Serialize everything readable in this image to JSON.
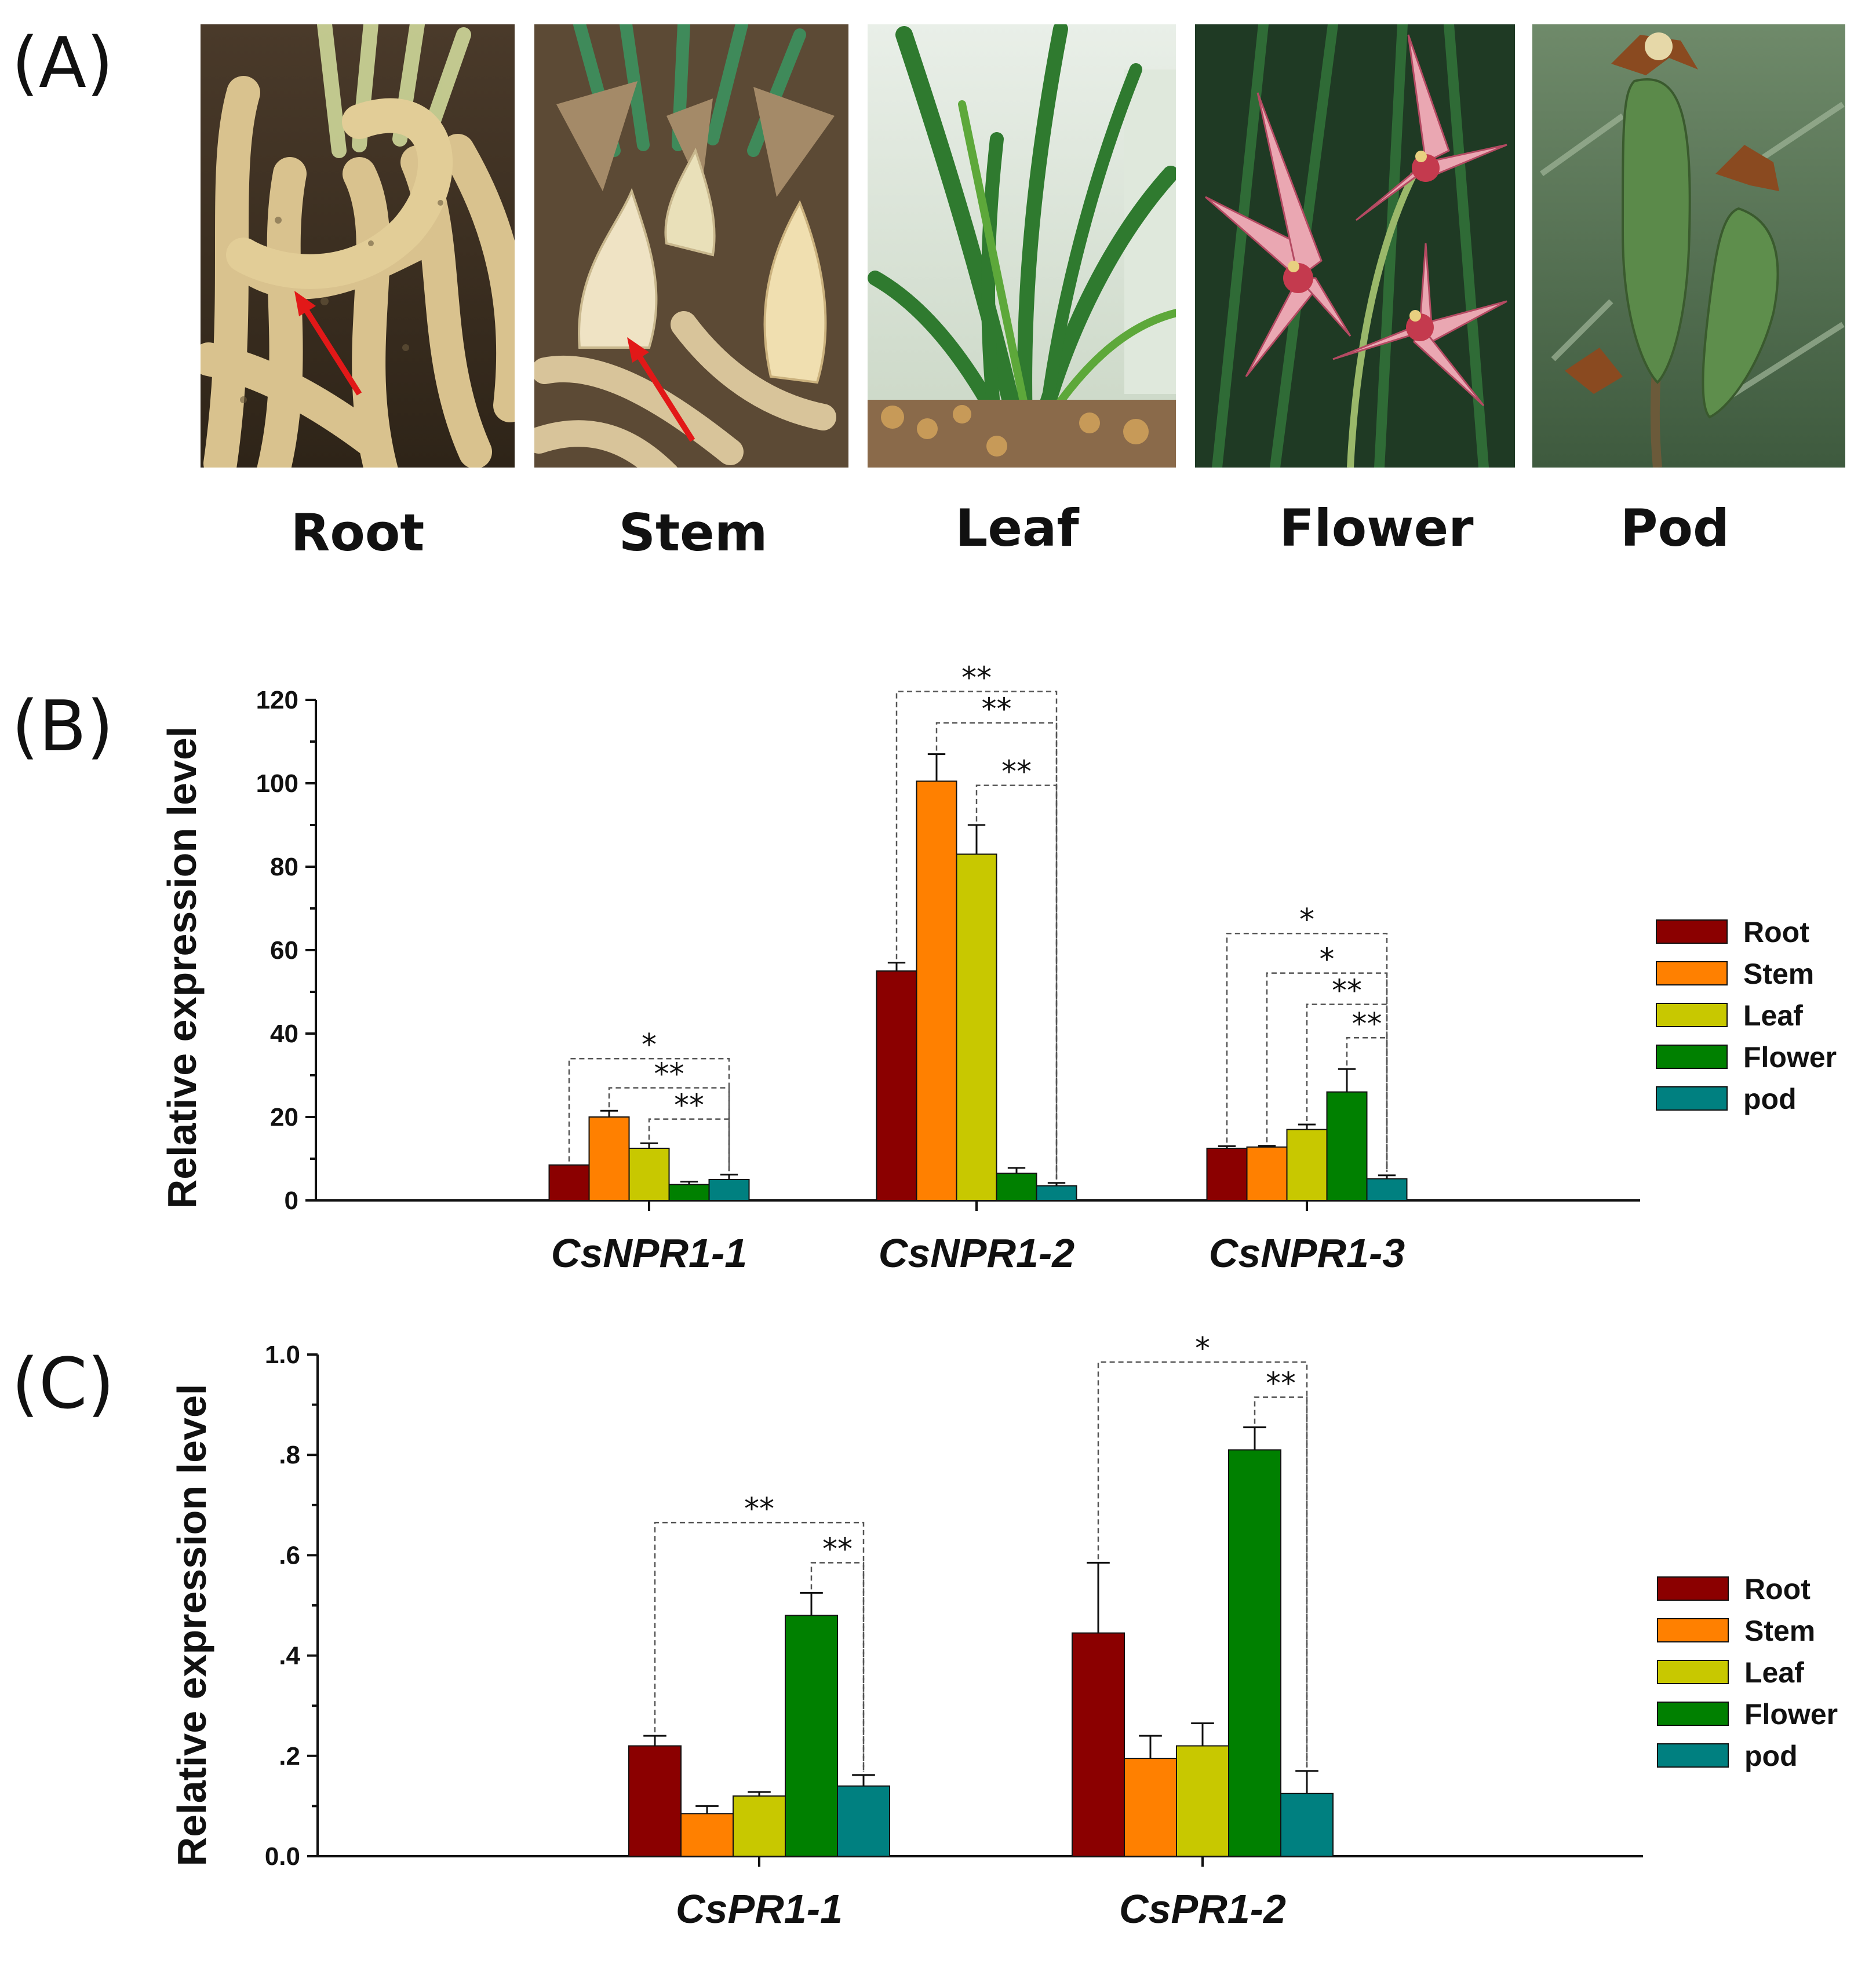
{
  "panel_labels": {
    "a": "(A)",
    "b": "(B)",
    "c": "(C)"
  },
  "photos": [
    {
      "label": "Root"
    },
    {
      "label": "Stem"
    },
    {
      "label": "Leaf"
    },
    {
      "label": "Flower"
    },
    {
      "label": "Pod"
    }
  ],
  "colors": {
    "Root": "#8b0000",
    "Stem": "#ff8000",
    "Leaf": "#c8c800",
    "Flower": "#008000",
    "pod": "#008080"
  },
  "chart_data": [
    {
      "type": "bar",
      "panel": "B",
      "ylabel": "Relative expression level",
      "xlabel": "",
      "ylim": [
        0,
        120
      ],
      "yticks": [
        0,
        20,
        40,
        60,
        80,
        100,
        120
      ],
      "ytick_labels": [
        "0",
        "20",
        "40",
        "60",
        "80",
        "100",
        "120"
      ],
      "categories": [
        "CsNPR1-1",
        "CsNPR1-2",
        "CsNPR1-3"
      ],
      "series": [
        {
          "name": "Root",
          "values": [
            8.5,
            55,
            12.5
          ],
          "errors": [
            0,
            2,
            0.5
          ]
        },
        {
          "name": "Stem",
          "values": [
            20,
            100.5,
            12.8
          ],
          "errors": [
            1.5,
            6.5,
            0.3
          ]
        },
        {
          "name": "Leaf",
          "values": [
            12.5,
            83,
            17
          ],
          "errors": [
            1.2,
            7,
            1.2
          ]
        },
        {
          "name": "Flower",
          "values": [
            3.8,
            6.5,
            26
          ],
          "errors": [
            0.7,
            1.3,
            5.5
          ]
        },
        {
          "name": "pod",
          "values": [
            5,
            3.5,
            5.2
          ],
          "errors": [
            1.2,
            0.7,
            0.8
          ]
        }
      ],
      "legend": [
        "Root",
        "Stem",
        "Leaf",
        "Flower",
        "pod"
      ],
      "significance": [
        {
          "category": 0,
          "from": 0,
          "to": 4,
          "level": 34,
          "label": "*"
        },
        {
          "category": 0,
          "from": 1,
          "to": 4,
          "level": 27,
          "label": "**"
        },
        {
          "category": 0,
          "from": 2,
          "to": 4,
          "level": 19.5,
          "label": "**"
        },
        {
          "category": 1,
          "from": 0,
          "to": 4,
          "level": 122,
          "label": "**"
        },
        {
          "category": 1,
          "from": 1,
          "to": 4,
          "level": 114.5,
          "label": "**"
        },
        {
          "category": 1,
          "from": 2,
          "to": 4,
          "level": 99.5,
          "label": "**"
        },
        {
          "category": 2,
          "from": 0,
          "to": 4,
          "level": 64,
          "label": "*"
        },
        {
          "category": 2,
          "from": 1,
          "to": 4,
          "level": 54.5,
          "label": "*"
        },
        {
          "category": 2,
          "from": 2,
          "to": 4,
          "level": 47,
          "label": "**"
        },
        {
          "category": 2,
          "from": 3,
          "to": 4,
          "level": 39,
          "label": "**"
        }
      ]
    },
    {
      "type": "bar",
      "panel": "C",
      "ylabel": "Relative expression level",
      "xlabel": "",
      "ylim": [
        0,
        1.0
      ],
      "yticks": [
        0,
        0.2,
        0.4,
        0.6,
        0.8,
        1.0
      ],
      "ytick_labels": [
        "0.0",
        ".2",
        ".4",
        ".6",
        ".8",
        "1.0"
      ],
      "categories": [
        "CsPR1-1",
        "CsPR1-2"
      ],
      "series": [
        {
          "name": "Root",
          "values": [
            0.22,
            0.445
          ],
          "errors": [
            0.02,
            0.14
          ]
        },
        {
          "name": "Stem",
          "values": [
            0.085,
            0.195
          ],
          "errors": [
            0.015,
            0.045
          ]
        },
        {
          "name": "Leaf",
          "values": [
            0.12,
            0.22
          ],
          "errors": [
            0.008,
            0.045
          ]
        },
        {
          "name": "Flower",
          "values": [
            0.48,
            0.81
          ],
          "errors": [
            0.045,
            0.045
          ]
        },
        {
          "name": "pod",
          "values": [
            0.14,
            0.125
          ],
          "errors": [
            0.022,
            0.045
          ]
        }
      ],
      "legend": [
        "Root",
        "Stem",
        "Leaf",
        "Flower",
        "pod"
      ],
      "significance": [
        {
          "category": 0,
          "from": 0,
          "to": 4,
          "level": 0.665,
          "label": "**"
        },
        {
          "category": 0,
          "from": 3,
          "to": 4,
          "level": 0.585,
          "label": "**"
        },
        {
          "category": 1,
          "from": 0,
          "to": 4,
          "level": 0.985,
          "label": "*"
        },
        {
          "category": 1,
          "from": 3,
          "to": 4,
          "level": 0.915,
          "label": "**"
        }
      ]
    }
  ]
}
